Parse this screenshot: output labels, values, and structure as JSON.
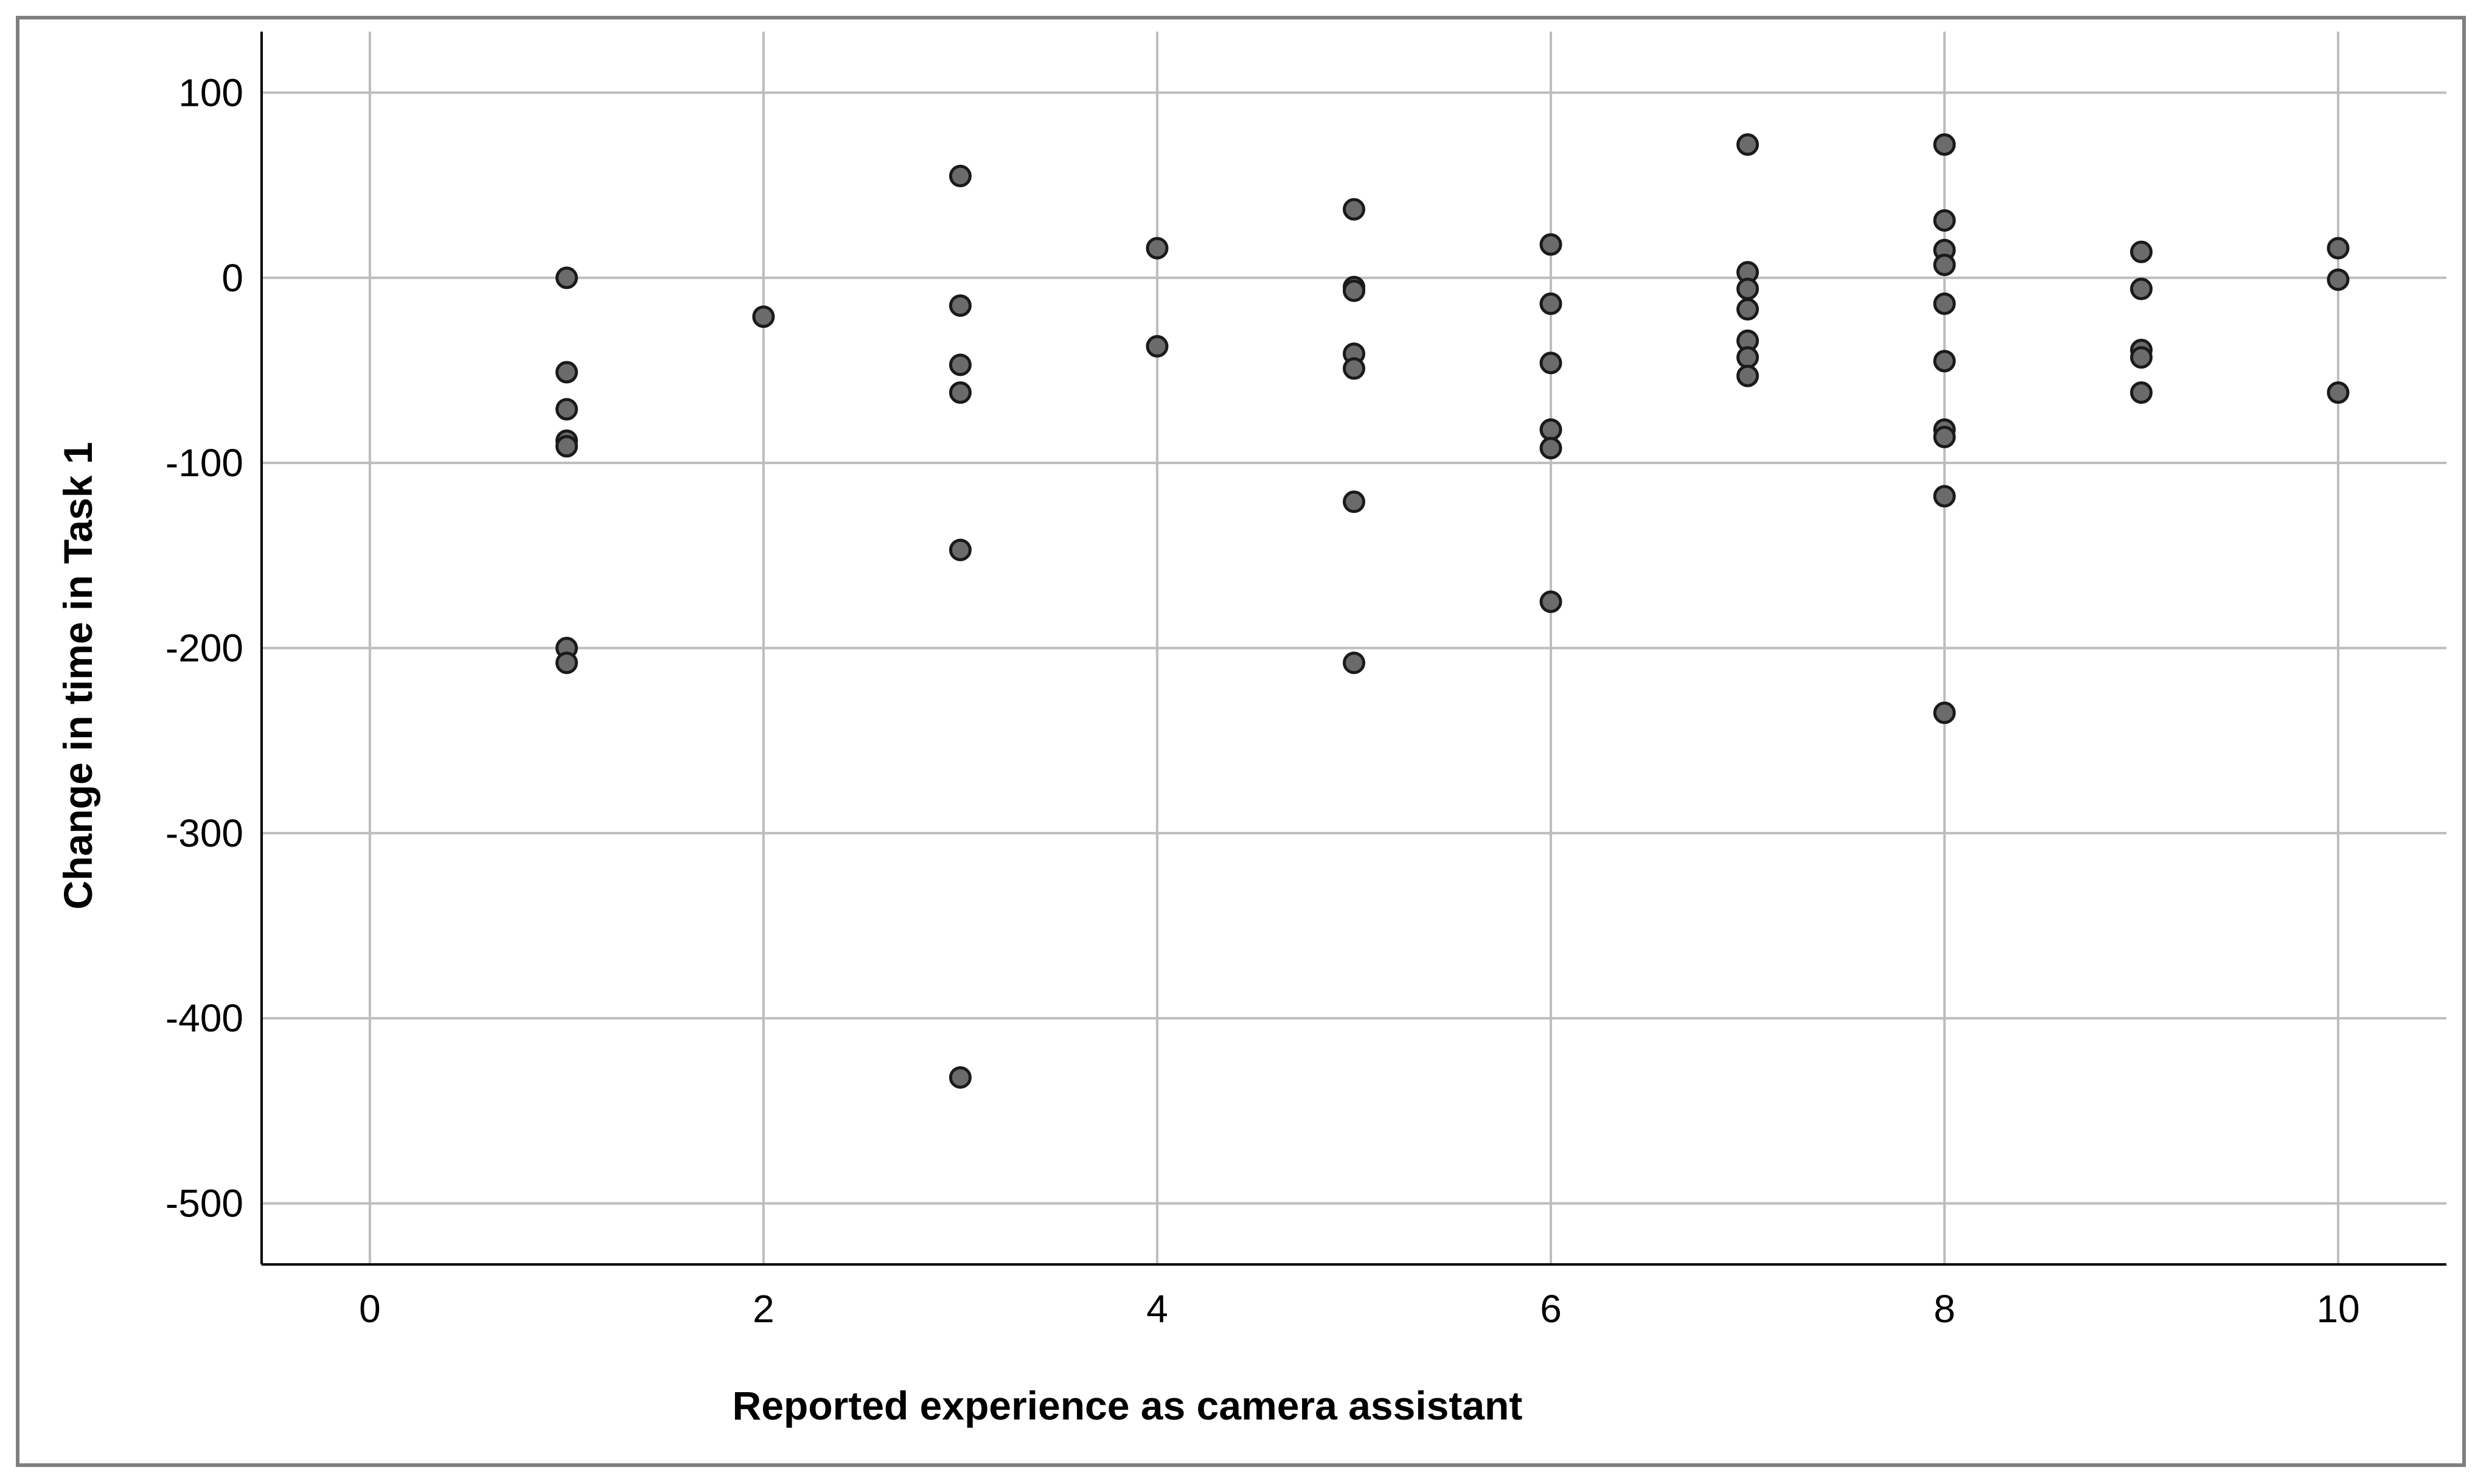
{
  "chart_data": {
    "type": "scatter",
    "xlabel": "Reported experience as camera assistant",
    "ylabel": "Change in time in Task 1",
    "xlim": [
      -0.55,
      10.55
    ],
    "ylim": [
      -533,
      133
    ],
    "x_ticks": [
      0,
      2,
      4,
      6,
      8,
      10
    ],
    "y_ticks": [
      100,
      0,
      -100,
      -200,
      -300,
      -400,
      -500
    ],
    "grid": true,
    "point_color": "#6b6b6b",
    "points": [
      {
        "x": 1,
        "y": 0
      },
      {
        "x": 1,
        "y": -51
      },
      {
        "x": 1,
        "y": -71
      },
      {
        "x": 1,
        "y": -88
      },
      {
        "x": 1,
        "y": -91
      },
      {
        "x": 1,
        "y": -200
      },
      {
        "x": 1,
        "y": -208
      },
      {
        "x": 2,
        "y": -21
      },
      {
        "x": 3,
        "y": 55
      },
      {
        "x": 3,
        "y": -15
      },
      {
        "x": 3,
        "y": -47
      },
      {
        "x": 3,
        "y": -62
      },
      {
        "x": 3,
        "y": -147
      },
      {
        "x": 3,
        "y": -432
      },
      {
        "x": 4,
        "y": 16
      },
      {
        "x": 4,
        "y": -37
      },
      {
        "x": 5,
        "y": 37
      },
      {
        "x": 5,
        "y": -5
      },
      {
        "x": 5,
        "y": -7
      },
      {
        "x": 5,
        "y": -41
      },
      {
        "x": 5,
        "y": -49
      },
      {
        "x": 5,
        "y": -121
      },
      {
        "x": 5,
        "y": -208
      },
      {
        "x": 6,
        "y": 18
      },
      {
        "x": 6,
        "y": -14
      },
      {
        "x": 6,
        "y": -46
      },
      {
        "x": 6,
        "y": -82
      },
      {
        "x": 6,
        "y": -92
      },
      {
        "x": 6,
        "y": -175
      },
      {
        "x": 7,
        "y": 72
      },
      {
        "x": 7,
        "y": 3
      },
      {
        "x": 7,
        "y": -6
      },
      {
        "x": 7,
        "y": -17
      },
      {
        "x": 7,
        "y": -34
      },
      {
        "x": 7,
        "y": -43
      },
      {
        "x": 7,
        "y": -53
      },
      {
        "x": 8,
        "y": 72
      },
      {
        "x": 8,
        "y": 31
      },
      {
        "x": 8,
        "y": 15
      },
      {
        "x": 8,
        "y": 7
      },
      {
        "x": 8,
        "y": -14
      },
      {
        "x": 8,
        "y": -45
      },
      {
        "x": 8,
        "y": -82
      },
      {
        "x": 8,
        "y": -86
      },
      {
        "x": 8,
        "y": -118
      },
      {
        "x": 8,
        "y": -235
      },
      {
        "x": 9,
        "y": 14
      },
      {
        "x": 9,
        "y": -6
      },
      {
        "x": 9,
        "y": -39
      },
      {
        "x": 9,
        "y": -43
      },
      {
        "x": 9,
        "y": -62
      },
      {
        "x": 10,
        "y": 16
      },
      {
        "x": 10,
        "y": -1
      },
      {
        "x": 10,
        "y": -62
      }
    ]
  }
}
